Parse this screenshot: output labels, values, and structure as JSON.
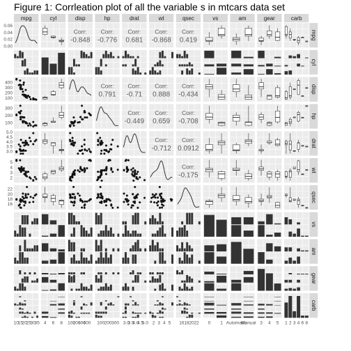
{
  "title": "Figure 1: Corrleation plot of all the variable s in mtcars data set",
  "colors": {
    "panel": "#EBEBEB",
    "strip": "#D9D9D9",
    "marks": "#333333",
    "corr_text": "#595959",
    "grid": "#FFFFFF"
  },
  "chart_data": {
    "type": "pairs",
    "variables": [
      "mpg",
      "cyl",
      "disp",
      "hp",
      "drat",
      "wt",
      "qsec",
      "vs",
      "am",
      "gear",
      "carb"
    ],
    "continuous": [
      "mpg",
      "disp",
      "hp",
      "drat",
      "wt",
      "qsec"
    ],
    "discrete_levels": {
      "cyl": [
        "4",
        "6",
        "8"
      ],
      "vs": [
        "0",
        "1"
      ],
      "am": [
        "Automatic",
        "Manual"
      ],
      "gear": [
        "3",
        "4",
        "5"
      ],
      "carb": [
        "1",
        "2",
        "3",
        "4",
        "6",
        "8"
      ]
    },
    "discrete_counts": {
      "cyl": [
        11,
        7,
        14
      ],
      "vs": [
        18,
        14
      ],
      "am": [
        19,
        13
      ],
      "gear": [
        15,
        12,
        5
      ],
      "carb": [
        7,
        10,
        3,
        10,
        1,
        1
      ]
    },
    "correlation_label": "Corr:",
    "correlations": [
      {
        "row": "mpg",
        "col": "disp",
        "value": "-0.848"
      },
      {
        "row": "mpg",
        "col": "hp",
        "value": "-0.776"
      },
      {
        "row": "mpg",
        "col": "drat",
        "value": "0.681"
      },
      {
        "row": "mpg",
        "col": "wt",
        "value": "-0.868"
      },
      {
        "row": "mpg",
        "col": "qsec",
        "value": "0.419"
      },
      {
        "row": "disp",
        "col": "hp",
        "value": "0.791"
      },
      {
        "row": "disp",
        "col": "drat",
        "value": "-0.71"
      },
      {
        "row": "disp",
        "col": "wt",
        "value": "0.888"
      },
      {
        "row": "disp",
        "col": "qsec",
        "value": "-0.434"
      },
      {
        "row": "hp",
        "col": "drat",
        "value": "-0.449"
      },
      {
        "row": "hp",
        "col": "wt",
        "value": "0.659"
      },
      {
        "row": "hp",
        "col": "qsec",
        "value": "-0.708"
      },
      {
        "row": "drat",
        "col": "wt",
        "value": "-0.712"
      },
      {
        "row": "drat",
        "col": "qsec",
        "value": "0.0912"
      },
      {
        "row": "wt",
        "col": "qsec",
        "value": "-0.175"
      }
    ],
    "axis_ticks": {
      "mpg": [
        "10",
        "15",
        "20",
        "25",
        "30",
        "35"
      ],
      "disp": [
        "100",
        "200",
        "300",
        "400"
      ],
      "hp": [
        "100",
        "200",
        "300"
      ],
      "drat": [
        "3.0",
        "3.5",
        "4.0",
        "4.5",
        "5.0"
      ],
      "wt": [
        "2",
        "3",
        "4",
        "5"
      ],
      "qsec": [
        "16",
        "18",
        "20",
        "22"
      ],
      "density_mpg": [
        "0.00",
        "0.02",
        "0.04",
        "0.06"
      ]
    },
    "mtcars": {
      "mpg": [
        21.0,
        21.0,
        22.8,
        21.4,
        18.7,
        18.1,
        14.3,
        24.4,
        22.8,
        19.2,
        17.8,
        16.4,
        17.3,
        15.2,
        10.4,
        10.4,
        14.7,
        32.4,
        30.4,
        33.9,
        21.5,
        15.5,
        15.2,
        13.3,
        19.2,
        27.3,
        26.0,
        30.4,
        15.8,
        19.7,
        15.0,
        21.4
      ],
      "cyl": [
        6,
        6,
        4,
        6,
        8,
        6,
        8,
        4,
        4,
        6,
        6,
        8,
        8,
        8,
        8,
        8,
        8,
        4,
        4,
        4,
        4,
        8,
        8,
        8,
        8,
        4,
        4,
        4,
        8,
        6,
        8,
        4
      ],
      "disp": [
        160,
        160,
        108,
        258,
        360,
        225,
        360,
        146.7,
        140.8,
        167.6,
        167.6,
        275.8,
        275.8,
        275.8,
        472,
        460,
        440,
        78.7,
        75.7,
        71.1,
        120.1,
        318,
        304,
        350,
        400,
        79,
        120.3,
        95.1,
        351,
        145,
        301,
        121
      ],
      "hp": [
        110,
        110,
        93,
        110,
        175,
        105,
        245,
        62,
        95,
        123,
        123,
        180,
        180,
        180,
        205,
        215,
        230,
        66,
        52,
        65,
        97,
        150,
        150,
        245,
        175,
        66,
        91,
        113,
        264,
        175,
        335,
        109
      ],
      "drat": [
        3.9,
        3.9,
        3.85,
        3.08,
        3.15,
        2.76,
        3.21,
        3.69,
        3.92,
        3.92,
        3.92,
        3.07,
        3.07,
        3.07,
        2.93,
        3.0,
        3.23,
        4.08,
        4.93,
        4.22,
        3.7,
        2.76,
        3.15,
        3.73,
        3.08,
        4.08,
        4.43,
        3.77,
        4.22,
        3.62,
        3.54,
        4.11
      ],
      "wt": [
        2.62,
        2.875,
        2.32,
        3.215,
        3.44,
        3.46,
        3.57,
        3.19,
        3.15,
        3.44,
        3.44,
        4.07,
        3.73,
        3.78,
        5.25,
        5.424,
        5.345,
        2.2,
        1.615,
        1.835,
        2.465,
        3.52,
        3.435,
        3.84,
        3.845,
        1.935,
        2.14,
        1.513,
        3.17,
        2.77,
        3.57,
        2.78
      ],
      "qsec": [
        16.46,
        17.02,
        18.61,
        19.44,
        17.02,
        20.22,
        15.84,
        20.0,
        22.9,
        18.3,
        18.9,
        17.4,
        17.6,
        18.0,
        17.98,
        17.82,
        17.42,
        19.47,
        18.52,
        19.9,
        20.01,
        16.87,
        17.3,
        15.41,
        17.05,
        18.9,
        16.7,
        16.9,
        14.5,
        15.5,
        14.6,
        18.6
      ],
      "vs": [
        0,
        0,
        1,
        1,
        0,
        1,
        0,
        1,
        1,
        1,
        1,
        0,
        0,
        0,
        0,
        0,
        0,
        1,
        1,
        1,
        1,
        0,
        0,
        0,
        0,
        1,
        0,
        1,
        0,
        0,
        0,
        1
      ],
      "am": [
        1,
        1,
        1,
        0,
        0,
        0,
        0,
        0,
        0,
        0,
        0,
        0,
        0,
        0,
        0,
        0,
        0,
        1,
        1,
        1,
        0,
        0,
        0,
        0,
        0,
        1,
        1,
        1,
        1,
        1,
        1,
        1
      ],
      "gear": [
        4,
        4,
        4,
        3,
        3,
        3,
        3,
        4,
        4,
        4,
        4,
        3,
        3,
        3,
        3,
        3,
        3,
        4,
        4,
        4,
        3,
        3,
        3,
        3,
        3,
        4,
        5,
        5,
        5,
        5,
        5,
        4
      ],
      "carb": [
        4,
        4,
        1,
        1,
        2,
        1,
        4,
        2,
        2,
        4,
        4,
        3,
        3,
        3,
        4,
        4,
        4,
        1,
        2,
        1,
        1,
        2,
        2,
        4,
        2,
        1,
        2,
        2,
        4,
        6,
        8,
        2
      ]
    },
    "axis_ranges": {
      "mpg": [
        9,
        35
      ],
      "disp": [
        60,
        480
      ],
      "hp": [
        40,
        340
      ],
      "drat": [
        2.7,
        5.0
      ],
      "wt": [
        1.4,
        5.5
      ],
      "qsec": [
        14.3,
        23.1
      ]
    },
    "grid": true
  }
}
